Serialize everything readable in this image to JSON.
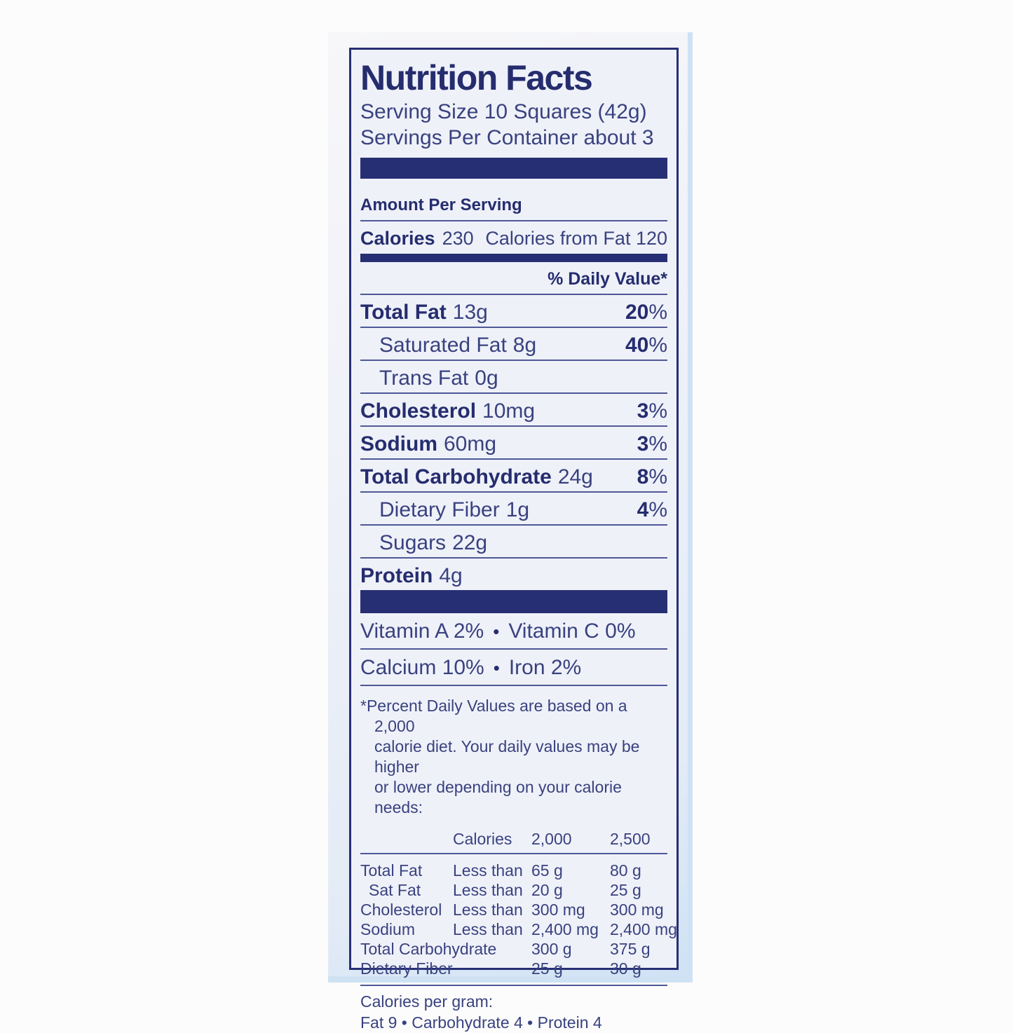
{
  "colors": {
    "accent": "#272f74",
    "paper": "#eff1f9",
    "paper_edge": "#cfe2f4",
    "text": "#39427f",
    "rule": "#4e5896"
  },
  "label": {
    "title": "Nutrition Facts",
    "serving_size": "Serving Size 10 Squares (42g)",
    "servings_per_container": "Servings Per Container about 3",
    "amount_per_serving": "Amount Per Serving",
    "calories": {
      "label": "Calories",
      "value": "230",
      "from_fat": "Calories from Fat 120"
    },
    "daily_value_header": "% Daily Value*",
    "percent_sign": "%",
    "separator": "•",
    "nutrients": [
      {
        "label": "Total Fat",
        "amount": "13g",
        "dv": "20",
        "bold": true,
        "indent": false
      },
      {
        "label": "Saturated Fat",
        "amount": "8g",
        "dv": "40",
        "bold": false,
        "indent": true
      },
      {
        "label": "Trans Fat",
        "amount": "0g",
        "dv": "",
        "bold": false,
        "indent": true
      },
      {
        "label": "Cholesterol",
        "amount": "10mg",
        "dv": "3",
        "bold": true,
        "indent": false
      },
      {
        "label": "Sodium",
        "amount": "60mg",
        "dv": "3",
        "bold": true,
        "indent": false
      },
      {
        "label": "Total Carbohydrate",
        "amount": "24g",
        "dv": "8",
        "bold": true,
        "indent": false
      },
      {
        "label": "Dietary Fiber",
        "amount": "1g",
        "dv": "4",
        "bold": false,
        "indent": true
      },
      {
        "label": "Sugars",
        "amount": "22g",
        "dv": "",
        "bold": false,
        "indent": true
      },
      {
        "label": "Protein",
        "amount": "4g",
        "dv": "",
        "bold": true,
        "indent": false
      }
    ],
    "vitamins": [
      {
        "left": "Vitamin A 2%",
        "right": "Vitamin C 0%"
      },
      {
        "left": "Calcium 10%",
        "right": "Iron 2%"
      }
    ],
    "footnote": "*Percent Daily Values are based on a 2,000\ncalorie diet. Your daily values may be higher\nor lower depending on your calorie needs:",
    "dv_table": {
      "header": {
        "col2": "Calories",
        "col3": "2,000",
        "col4": "2,500"
      },
      "rows": [
        {
          "label": "Total Fat",
          "qualifier": "Less than",
          "v2000": "65 g",
          "v2500": "80 g",
          "indent": false
        },
        {
          "label": "Sat Fat",
          "qualifier": "Less than",
          "v2000": "20 g",
          "v2500": "25 g",
          "indent": true
        },
        {
          "label": "Cholesterol",
          "qualifier": "Less than",
          "v2000": "300 mg",
          "v2500": "300 mg",
          "indent": false
        },
        {
          "label": "Sodium",
          "qualifier": "Less than",
          "v2000": "2,400 mg",
          "v2500": "2,400 mg",
          "indent": false
        },
        {
          "label": "Total Carbohydrate",
          "qualifier": "",
          "v2000": "300 g",
          "v2500": "375 g",
          "indent": false
        },
        {
          "label": "Dietary Fiber",
          "qualifier": "",
          "v2000": "25 g",
          "v2500": "30 g",
          "indent": false
        }
      ]
    },
    "calories_per_gram": {
      "title": "Calories per gram:",
      "values": "Fat 9 • Carbohydrate 4 • Protein 4"
    }
  }
}
